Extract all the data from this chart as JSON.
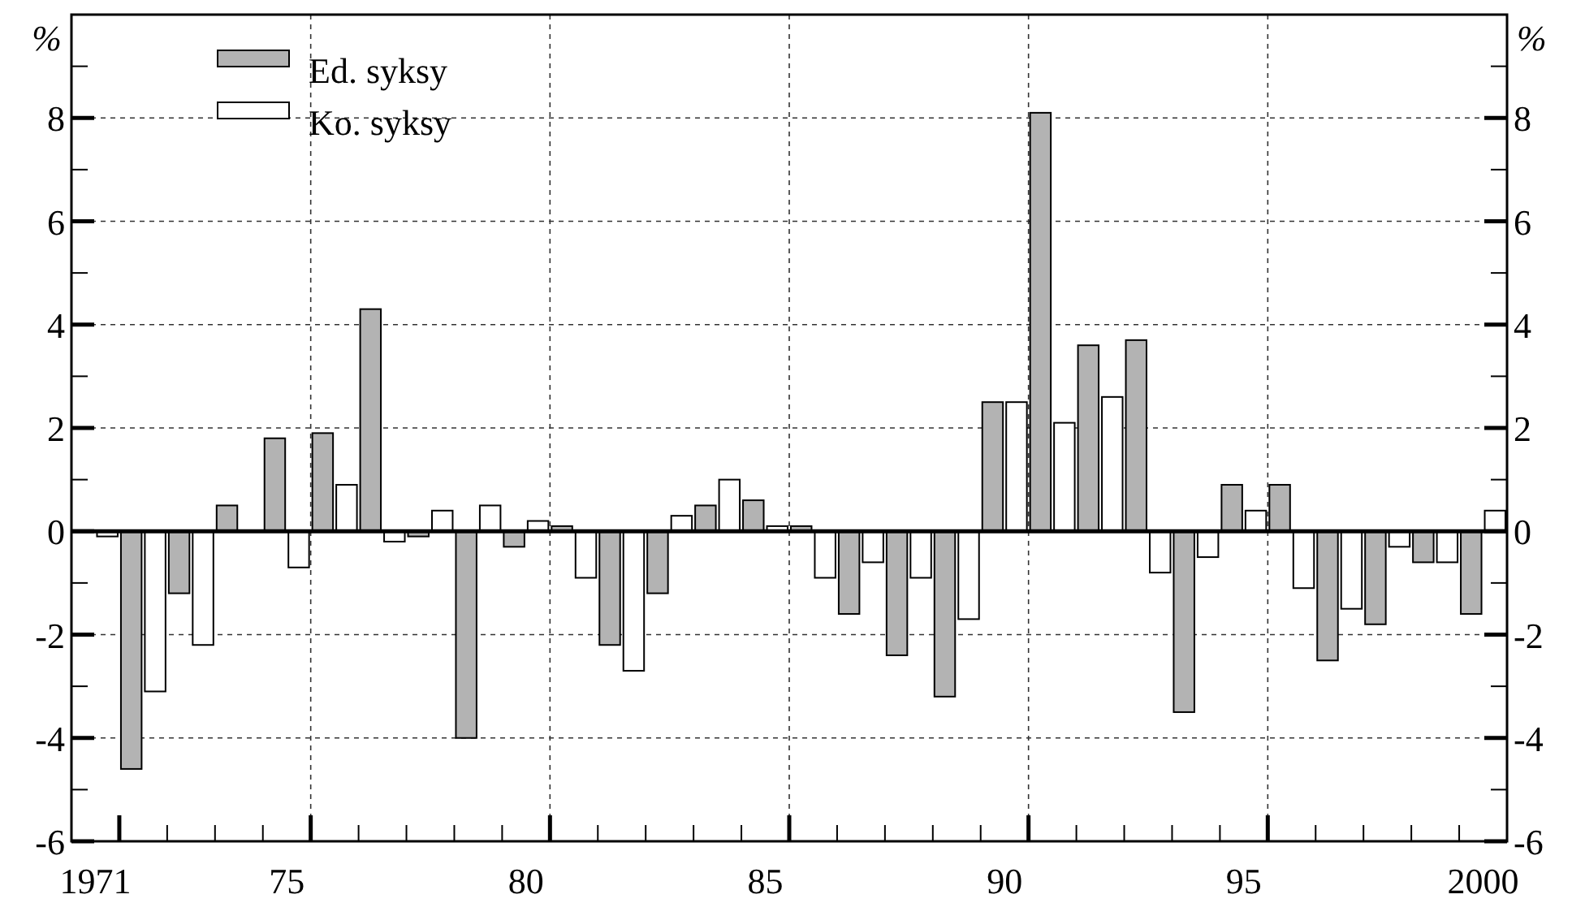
{
  "chart_data": {
    "type": "bar",
    "categories": [
      "1971",
      null,
      null,
      null,
      "75",
      null,
      null,
      null,
      null,
      "80",
      null,
      null,
      null,
      null,
      "85",
      null,
      null,
      null,
      null,
      "90",
      null,
      null,
      null,
      null,
      "95",
      null,
      null,
      null,
      null,
      "2000"
    ],
    "series": [
      {
        "name": "Ed. syksy",
        "color": "#b3b3b3",
        "values": [
          null,
          -4.6,
          -1.2,
          0.5,
          1.8,
          1.9,
          4.3,
          -0.1,
          -4.0,
          -0.3,
          0.1,
          -2.2,
          -1.2,
          0.5,
          0.6,
          0.1,
          -1.6,
          -2.4,
          -3.2,
          2.5,
          8.1,
          3.6,
          3.7,
          -3.5,
          0.9,
          0.9,
          -2.5,
          -1.8,
          -0.6,
          -1.6
        ]
      },
      {
        "name": "Ko. syksy",
        "color": "#ffffff",
        "values": [
          -0.1,
          -3.1,
          -2.2,
          null,
          -0.7,
          0.9,
          -0.2,
          0.4,
          0.5,
          0.2,
          -0.9,
          -2.7,
          0.3,
          1.0,
          0.1,
          -0.9,
          -0.6,
          -0.9,
          -1.7,
          2.5,
          2.1,
          2.6,
          -0.8,
          -0.5,
          0.4,
          -1.1,
          -1.5,
          -0.3,
          -0.6,
          0.4
        ]
      }
    ],
    "ylabel": "%",
    "y2label": "%",
    "ylim": [
      -6,
      10
    ],
    "yticks": [
      -6,
      {
        "value": -5,
        "label": null
      },
      -4,
      {
        "value": -3,
        "label": null
      },
      -2,
      {
        "value": -1,
        "label": null
      },
      0,
      {
        "value": 1,
        "label": null
      },
      2,
      {
        "value": 3,
        "label": null
      },
      4,
      {
        "value": 5,
        "label": null
      },
      6,
      {
        "value": 7,
        "label": null
      },
      8,
      {
        "value": 9,
        "label": null
      }
    ],
    "y2lim": [
      -6,
      10
    ],
    "y2ticks": [
      -6,
      {
        "value": -5,
        "label": null
      },
      -4,
      {
        "value": -3,
        "label": null
      },
      -2,
      {
        "value": -1,
        "label": null
      },
      0,
      {
        "value": 1,
        "label": null
      },
      2,
      {
        "value": 3,
        "label": null
      },
      4,
      {
        "value": 5,
        "label": null
      },
      6,
      {
        "value": 7,
        "label": null
      },
      8,
      {
        "value": 9,
        "label": null
      }
    ],
    "grid": true,
    "legend": "top left"
  }
}
